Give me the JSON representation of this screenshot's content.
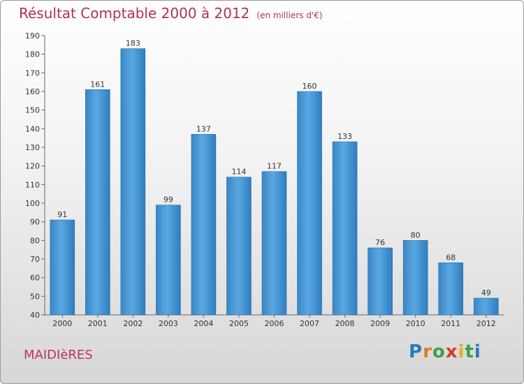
{
  "header": {
    "title": "Résultat Comptable 2000 à 2012",
    "unit": "(en milliers d'€)"
  },
  "footer": {
    "town": "MAIDIèRES",
    "brand": "Proxiti",
    "brand_letters": [
      "P",
      "r",
      "o",
      "x",
      "i",
      "t",
      "i"
    ],
    "brand_colors": [
      "#2a7ab8",
      "#e07a1f",
      "#3aa04a",
      "#d83a2a",
      "#e0b21f",
      "#3aa04a",
      "#2a7ab8"
    ]
  },
  "chart_data": {
    "type": "bar",
    "title": "Résultat Comptable 2000 à 2012",
    "xlabel": "",
    "ylabel": "",
    "categories": [
      "2000",
      "2001",
      "2002",
      "2003",
      "2004",
      "2005",
      "2006",
      "2007",
      "2008",
      "2009",
      "2010",
      "2011",
      "2012"
    ],
    "values": [
      91,
      161,
      183,
      99,
      137,
      114,
      117,
      160,
      133,
      76,
      80,
      68,
      49
    ],
    "ylim": [
      40,
      190
    ],
    "yticks": [
      40,
      50,
      60,
      70,
      80,
      90,
      100,
      110,
      120,
      130,
      140,
      150,
      160,
      170,
      180,
      190
    ],
    "grid": false,
    "bar_color": "#3d8fd0"
  }
}
